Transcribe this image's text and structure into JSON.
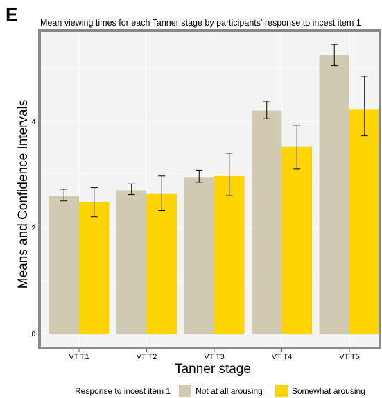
{
  "panel_letter": "E",
  "colors": {
    "panel_background": "#f3f3f3",
    "grid": "#ffffff",
    "frame": "#8a8a8a",
    "series_1": "#cfcab1",
    "series_2": "#ffd400"
  },
  "legend": {
    "title": "Response to incest item 1",
    "position": "bottom",
    "items": [
      "Not at all arousing",
      "Somewhat arousing"
    ]
  },
  "chart_data": {
    "type": "bar",
    "title": "Mean viewing times for each Tanner stage by participants' response to incest item 1",
    "xlabel": "Tanner stage",
    "ylabel": "Means and Confidence Intervals",
    "categories": [
      "VT T1",
      "VT T2",
      "VT T3",
      "VT T4",
      "VT T5"
    ],
    "ylim": [
      0,
      5.3
    ],
    "yticks": [
      0,
      2,
      4
    ],
    "grid": true,
    "error_bars": true,
    "series": [
      {
        "name": "Not at all arousing",
        "values": [
          2.6,
          2.7,
          2.95,
          4.2,
          5.25
        ],
        "ci_low": [
          2.5,
          2.62,
          2.85,
          4.05,
          5.05
        ],
        "ci_high": [
          2.72,
          2.82,
          3.08,
          4.38,
          5.45
        ]
      },
      {
        "name": "Somewhat arousing",
        "values": [
          2.47,
          2.63,
          2.97,
          3.52,
          4.23
        ],
        "ci_low": [
          2.2,
          2.32,
          2.6,
          3.1,
          3.73
        ],
        "ci_high": [
          2.75,
          2.97,
          3.4,
          3.92,
          4.85
        ]
      }
    ]
  }
}
